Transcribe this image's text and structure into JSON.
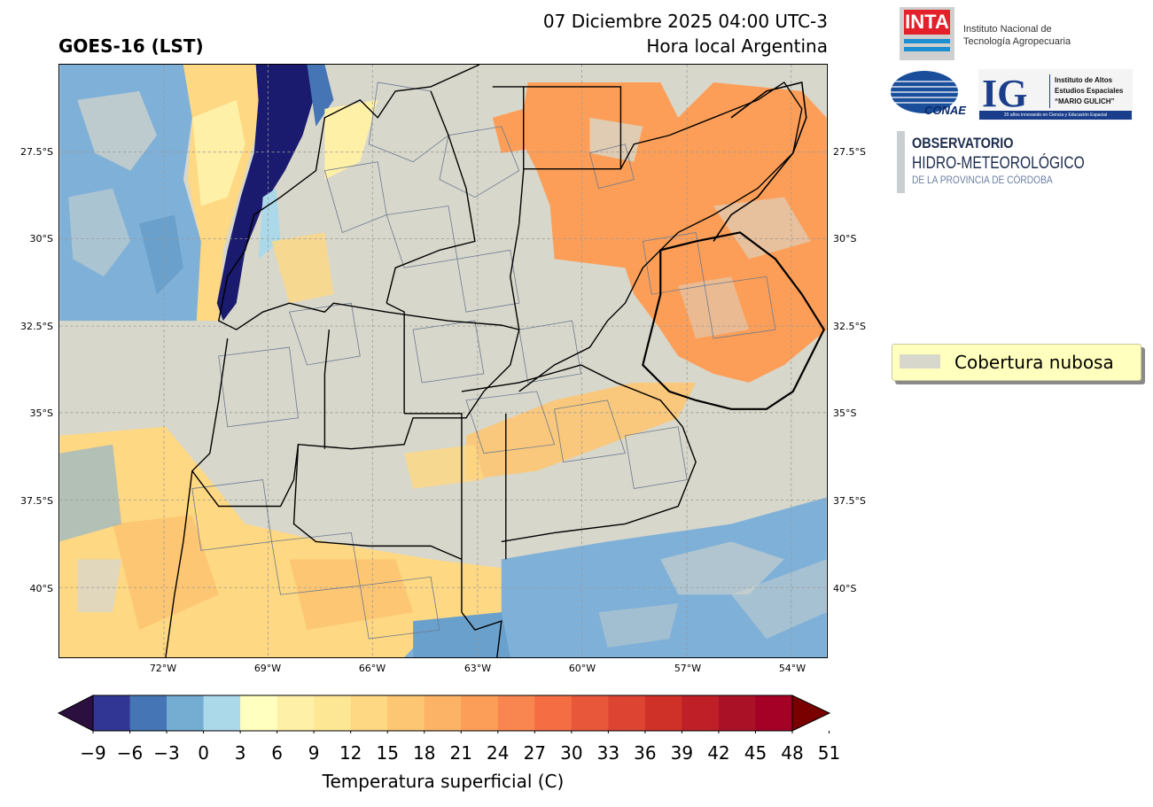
{
  "header": {
    "title": "GOES-16 (LST)",
    "date": "07 Diciembre 2025 04:00 UTC-3",
    "timezone": "Hora local Argentina"
  },
  "axes": {
    "lat_ticks": [
      "27.5°S",
      "30°S",
      "32.5°S",
      "35°S",
      "37.5°S",
      "40°S"
    ],
    "lon_ticks": [
      "72°W",
      "69°W",
      "66°W",
      "63°W",
      "60°W",
      "57°W",
      "54°W"
    ]
  },
  "legend": {
    "label": "Cobertura nubosa",
    "color": "#d8d7cb"
  },
  "colorbar": {
    "label": "Temperatura superficial (C)",
    "ticks": [
      "−9",
      "−6",
      "−3",
      "0",
      "3",
      "6",
      "9",
      "12",
      "15",
      "18",
      "21",
      "24",
      "27",
      "30",
      "33",
      "36",
      "39",
      "42",
      "45",
      "48",
      "51"
    ],
    "colors": [
      "#313695",
      "#4575b4",
      "#74add1",
      "#abd9e9",
      "#ffffbf",
      "#fff0a8",
      "#fee794",
      "#fed882",
      "#fdc673",
      "#fdb366",
      "#fc9e58",
      "#f98650",
      "#f46d43",
      "#e9573a",
      "#dd4431",
      "#cf3128",
      "#bf1f26",
      "#ab1126",
      "#a50026"
    ],
    "under_color": "#2a0f3f",
    "over_color": "#7a0000"
  },
  "logos": {
    "inta_mark": "INTA",
    "inta_name_1": "Instituto Nacional de",
    "inta_name_2": "Tecnología Agropecuaria",
    "conae": "CONAE",
    "ig_mark": "IG",
    "ig_name_1": "Instituto de Altos",
    "ig_name_2": "Estudios Espaciales",
    "ig_name_3": "“MARIO GULICH”",
    "ig_tagline": "20 años innovando en Ciencia y Educación Espacial",
    "obs_1": "OBSERVATORIO",
    "obs_2": "HIDRO-METEOROLÓGICO",
    "obs_3": "DE LA PROVINCIA DE CÓRDOBA"
  },
  "colors": {
    "ocean_cold": "#7fb0d8",
    "cloud": "#d8d7cb",
    "warm": "#fc9e58",
    "mild": "#fed882",
    "cold_snow": "#1a1a6e"
  }
}
